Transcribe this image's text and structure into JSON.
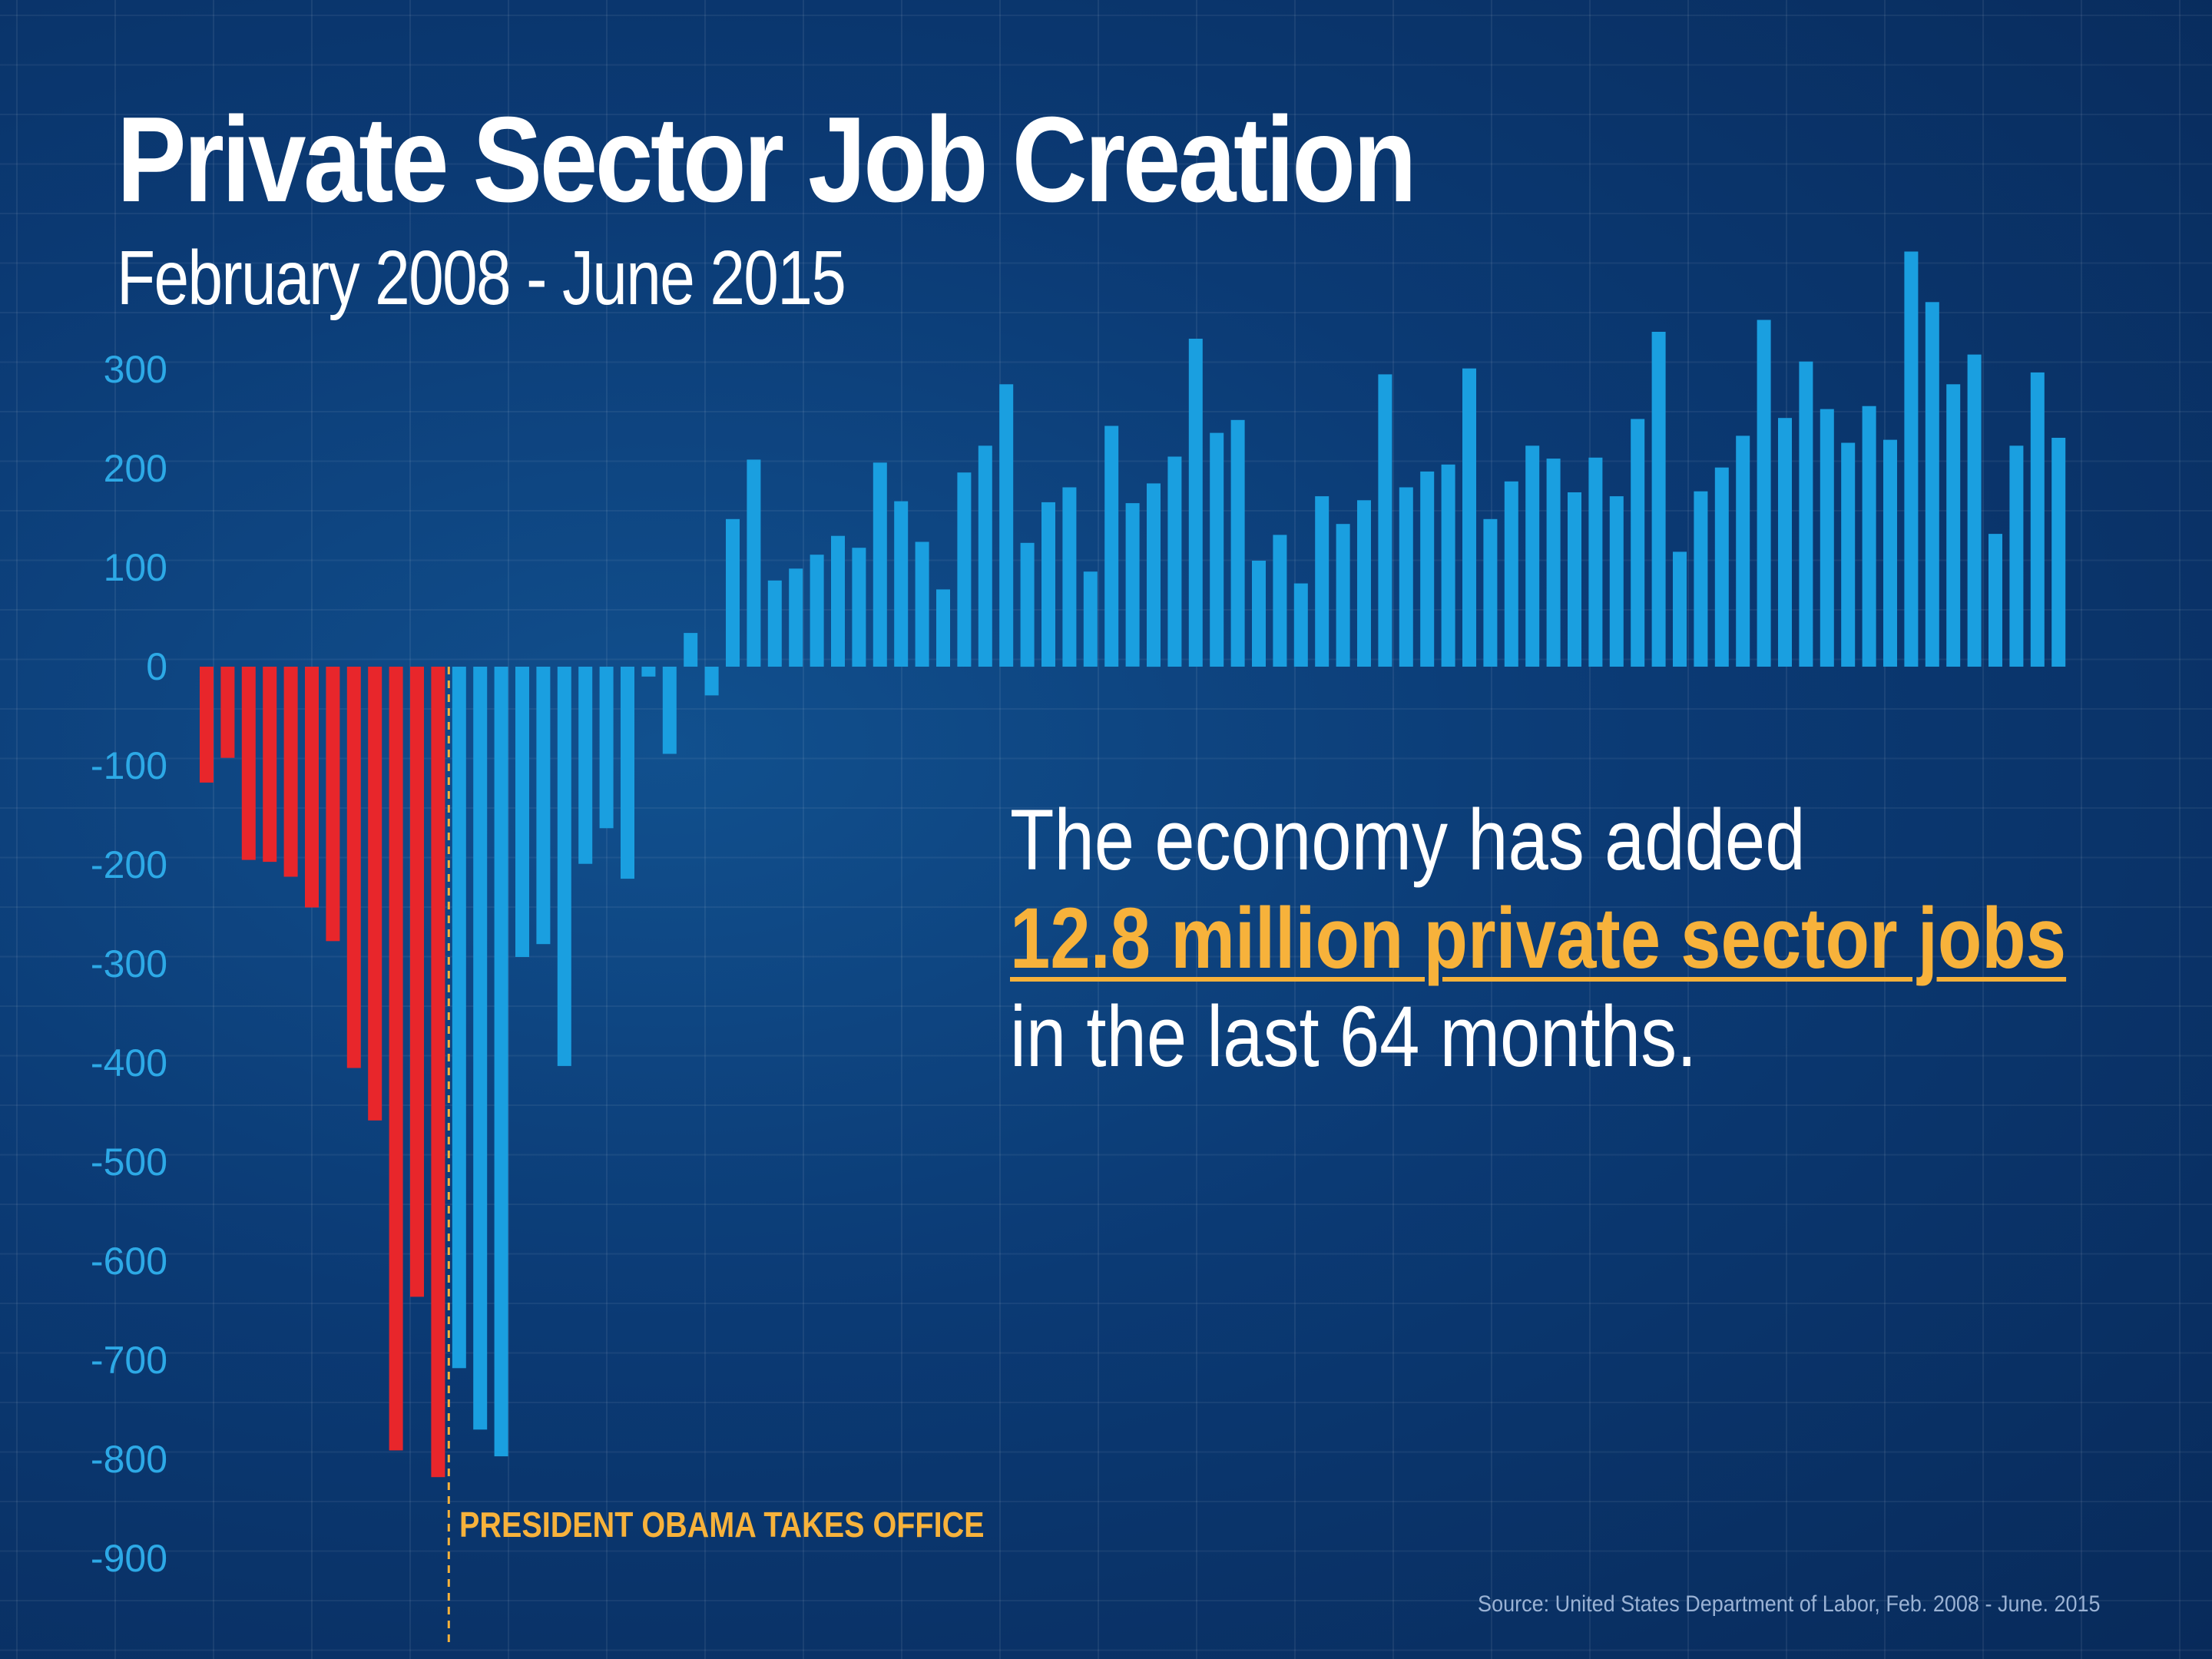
{
  "header": {
    "title": "Private Sector Job Creation",
    "subtitle": "February 2008 - June 2015"
  },
  "callout": {
    "line1": "The economy has added",
    "highlight": "12.8 million private sector jobs",
    "line3": "in the last 64 months."
  },
  "annotation": {
    "event_label": "PRESIDENT OBAMA TAKES OFFICE"
  },
  "footer": {
    "source": "Source: United States Department of Labor,  Feb. 2008 - June. 2015"
  },
  "colors": {
    "pre_obama": "#e8262b",
    "post_obama": "#1a9fe0",
    "event_line": "#f7b23b",
    "axis_text": "#2da9e6"
  },
  "chart_data": {
    "type": "bar",
    "title": "Private Sector Job Creation",
    "subtitle": "February 2008 - June 2015",
    "xlabel": "",
    "ylabel": "",
    "ylim": [
      -900,
      420
    ],
    "yticks": [
      300,
      200,
      100,
      0,
      -100,
      -200,
      -300,
      -400,
      -500,
      -600,
      -700,
      -800,
      -900
    ],
    "grid": true,
    "pre_obama_count": 12,
    "series": [
      {
        "values": [
          -117,
          -92,
          -195,
          -197,
          -212,
          -243,
          -277,
          -405,
          -458,
          -791,
          -636,
          -818,
          -708,
          -770,
          -797,
          -293,
          -280,
          -403,
          -199,
          -163,
          -214,
          -10,
          -88,
          34,
          -29,
          149,
          209,
          87,
          99,
          113,
          132,
          120,
          206,
          167,
          126,
          78,
          196,
          223,
          285,
          125,
          166,
          181,
          96,
          243,
          165,
          185,
          212,
          331,
          236,
          249,
          107,
          133,
          84,
          172,
          144,
          168,
          295,
          181,
          197,
          204,
          301,
          149,
          187,
          223,
          210,
          176,
          211,
          172,
          250,
          338,
          116,
          177,
          201,
          233,
          350,
          251,
          308,
          260,
          226,
          263,
          229,
          419,
          368,
          285,
          315,
          134,
          223,
          297,
          231
        ]
      }
    ]
  }
}
